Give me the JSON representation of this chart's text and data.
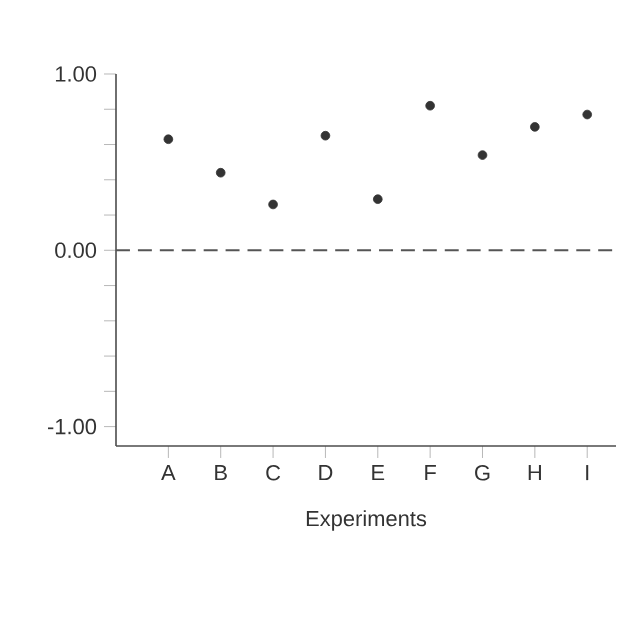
{
  "chart_data": {
    "type": "scatter",
    "xlabel": "Experiments",
    "categories": [
      "A",
      "B",
      "C",
      "D",
      "E",
      "F",
      "G",
      "H",
      "I"
    ],
    "values": [
      0.63,
      0.44,
      0.26,
      0.65,
      0.29,
      0.82,
      0.54,
      0.7,
      0.77
    ],
    "color": "#333333",
    "ylim": [
      -1.11,
      1.0
    ],
    "yticks": [
      {
        "value": -1.0,
        "label": "-1.00"
      },
      {
        "value": -0.8,
        "label": null
      },
      {
        "value": -0.6,
        "label": null
      },
      {
        "value": -0.4,
        "label": null
      },
      {
        "value": -0.2,
        "label": null
      },
      {
        "value": 0.0,
        "label": "0.00"
      },
      {
        "value": 0.2,
        "label": null
      },
      {
        "value": 0.4,
        "label": null
      },
      {
        "value": 0.6,
        "label": null
      },
      {
        "value": 0.8,
        "label": null
      },
      {
        "value": 1.0,
        "label": "1.00"
      }
    ],
    "ref_lines": [
      {
        "axis": "y",
        "value": 0,
        "color": "#555555",
        "line_style": "dashed"
      }
    ],
    "grid": false
  }
}
